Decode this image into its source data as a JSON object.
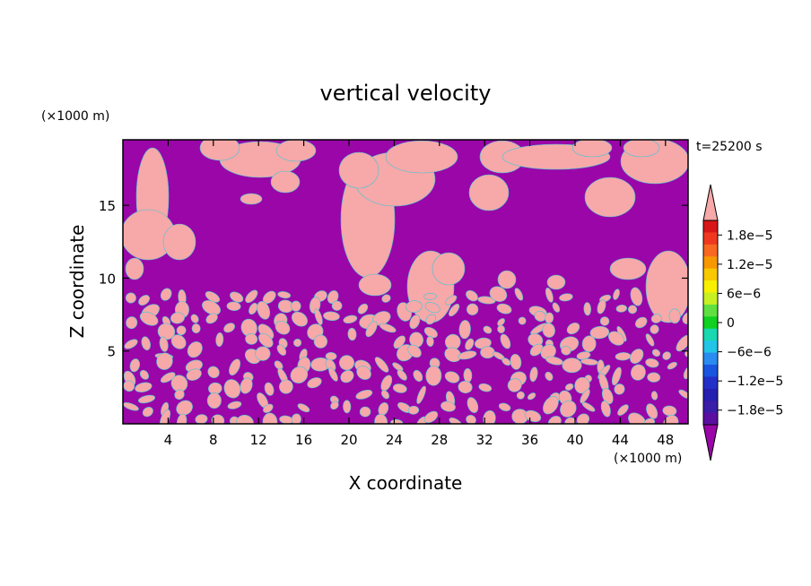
{
  "chart_data": {
    "type": "heatmap",
    "title": "vertical velocity",
    "xlabel": "X coordinate",
    "ylabel": "Z coordinate",
    "x_unit": "(×1000 m)",
    "y_unit": "(×1000 m)",
    "time_label": "t=25200 s",
    "xlim": [
      0,
      50
    ],
    "ylim": [
      0,
      19.5
    ],
    "x_ticks": [
      4,
      8,
      12,
      16,
      20,
      24,
      28,
      32,
      36,
      40,
      44,
      48
    ],
    "y_ticks": [
      5,
      10,
      15
    ],
    "colorbar": {
      "ticks": [
        "1.8e−5",
        "1.2e−5",
        "6e−6",
        "0",
        "−6e−6",
        "−1.2e−5",
        "−1.8e−5"
      ],
      "tick_values": [
        1.8e-05,
        1.2e-05,
        6e-06,
        0,
        -6e-06,
        -1.2e-05,
        -1.8e-05
      ],
      "range": [
        -2.1e-05,
        2.1e-05
      ],
      "levels": [
        "#5a0fa0",
        "#3a1da8",
        "#241fb0",
        "#2330c8",
        "#1a55e0",
        "#2a8cf0",
        "#22c4e8",
        "#18d8b0",
        "#10d020",
        "#60e040",
        "#c8f020",
        "#f8f000",
        "#f8c800",
        "#f89800",
        "#f86820",
        "#f03820",
        "#d81818"
      ],
      "over_color": "#f7a8a8",
      "under_color": "#9a06a8"
    },
    "colors": {
      "updraft": "#f7a8a8",
      "downdraft": "#9a06a8"
    }
  }
}
